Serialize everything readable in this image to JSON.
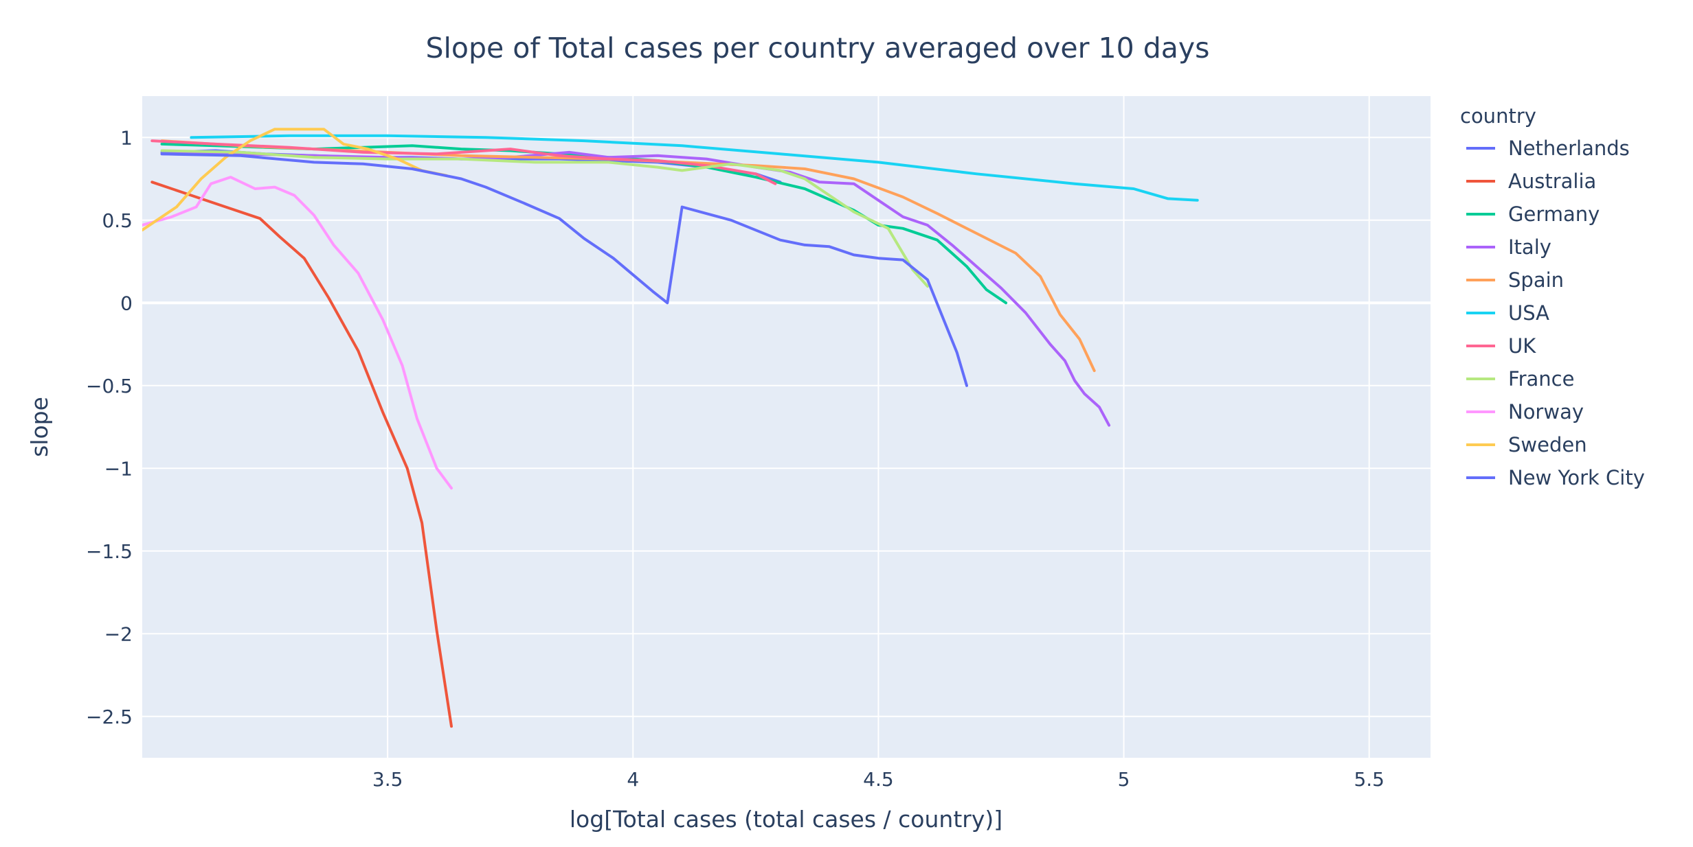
{
  "chart_data": {
    "type": "line",
    "title": "Slope of Total cases per country averaged over 10 days",
    "xlabel": "log[Total cases (total cases / country)]",
    "ylabel": "slope",
    "xlim": [
      3.0,
      5.625
    ],
    "ylim": [
      -2.75,
      1.25
    ],
    "x_ticks": [
      3.5,
      4,
      4.5,
      5,
      5.5
    ],
    "x_tick_labels": [
      "3.5",
      "4",
      "4.5",
      "5",
      "5.5"
    ],
    "y_ticks": [
      1,
      0.5,
      0,
      -0.5,
      -1,
      -1.5,
      -2,
      -2.5
    ],
    "y_tick_labels": [
      "1",
      "0.5",
      "0",
      "−0.5",
      "−1",
      "−1.5",
      "−2",
      "−2.5"
    ],
    "grid": true,
    "plot_background": "#e5ecf6",
    "legend": {
      "title": "country",
      "placement": "right"
    },
    "series": [
      {
        "name": "Netherlands",
        "color": "#636efa",
        "x": [
          3.04,
          3.15,
          3.25,
          3.35,
          3.45,
          3.55,
          3.65,
          3.75,
          3.85,
          3.95,
          4.05,
          4.15,
          4.25,
          4.3
        ],
        "y": [
          0.91,
          0.92,
          0.9,
          0.89,
          0.88,
          0.88,
          0.87,
          0.87,
          0.87,
          0.86,
          0.85,
          0.82,
          0.78,
          0.73
        ]
      },
      {
        "name": "Australia",
        "color": "#ef553b",
        "x": [
          3.02,
          3.1,
          3.17,
          3.24,
          3.28,
          3.33,
          3.38,
          3.44,
          3.49,
          3.54,
          3.57,
          3.6,
          3.63
        ],
        "y": [
          0.73,
          0.65,
          0.58,
          0.51,
          0.4,
          0.27,
          0.03,
          -0.29,
          -0.66,
          -1.0,
          -1.33,
          -1.98,
          -2.56
        ]
      },
      {
        "name": "Germany",
        "color": "#00cc96",
        "x": [
          3.04,
          3.15,
          3.25,
          3.35,
          3.45,
          3.55,
          3.65,
          3.75,
          3.85,
          3.95,
          4.05,
          4.15,
          4.25,
          4.35,
          4.45,
          4.5,
          4.55,
          4.62,
          4.68,
          4.72,
          4.76
        ],
        "y": [
          0.96,
          0.95,
          0.94,
          0.93,
          0.94,
          0.95,
          0.93,
          0.92,
          0.9,
          0.88,
          0.86,
          0.82,
          0.76,
          0.69,
          0.56,
          0.47,
          0.45,
          0.38,
          0.22,
          0.08,
          0.0
        ]
      },
      {
        "name": "Italy",
        "color": "#ab63fa",
        "x": [
          3.04,
          3.2,
          3.35,
          3.5,
          3.65,
          3.75,
          3.87,
          3.95,
          4.05,
          4.15,
          4.25,
          4.32,
          4.38,
          4.45,
          4.5,
          4.55,
          4.6,
          4.65,
          4.7,
          4.75,
          4.8,
          4.85,
          4.88,
          4.9,
          4.92,
          4.95,
          4.97
        ],
        "y": [
          0.9,
          0.9,
          0.89,
          0.88,
          0.87,
          0.88,
          0.91,
          0.88,
          0.89,
          0.87,
          0.82,
          0.79,
          0.73,
          0.72,
          0.62,
          0.52,
          0.47,
          0.35,
          0.22,
          0.09,
          -0.06,
          -0.25,
          -0.35,
          -0.47,
          -0.55,
          -0.63,
          -0.74
        ]
      },
      {
        "name": "Spain",
        "color": "#ffa15a",
        "x": [
          3.04,
          3.2,
          3.35,
          3.5,
          3.65,
          3.8,
          3.95,
          4.1,
          4.25,
          4.35,
          4.45,
          4.55,
          4.62,
          4.7,
          4.78,
          4.83,
          4.87,
          4.91,
          4.94
        ],
        "y": [
          0.98,
          0.95,
          0.93,
          0.91,
          0.89,
          0.88,
          0.87,
          0.85,
          0.83,
          0.81,
          0.75,
          0.64,
          0.54,
          0.42,
          0.3,
          0.16,
          -0.07,
          -0.22,
          -0.41
        ]
      },
      {
        "name": "USA",
        "color": "#19d3f3",
        "x": [
          3.1,
          3.3,
          3.5,
          3.7,
          3.9,
          4.1,
          4.3,
          4.5,
          4.7,
          4.9,
          5.02,
          5.09,
          5.15
        ],
        "y": [
          1.0,
          1.01,
          1.01,
          1.0,
          0.98,
          0.95,
          0.9,
          0.85,
          0.78,
          0.72,
          0.69,
          0.63,
          0.62
        ]
      },
      {
        "name": "UK",
        "color": "#ff6692",
        "x": [
          3.02,
          3.15,
          3.3,
          3.45,
          3.6,
          3.75,
          3.85,
          3.95,
          4.05,
          4.15,
          4.25,
          4.29
        ],
        "y": [
          0.98,
          0.96,
          0.94,
          0.91,
          0.9,
          0.93,
          0.89,
          0.87,
          0.86,
          0.83,
          0.78,
          0.72
        ]
      },
      {
        "name": "France",
        "color": "#b6e880",
        "x": [
          3.04,
          3.2,
          3.35,
          3.5,
          3.65,
          3.8,
          3.95,
          4.05,
          4.1,
          4.2,
          4.3,
          4.35,
          4.45,
          4.52,
          4.57,
          4.6
        ],
        "y": [
          0.92,
          0.91,
          0.88,
          0.87,
          0.87,
          0.85,
          0.85,
          0.82,
          0.8,
          0.84,
          0.8,
          0.75,
          0.55,
          0.45,
          0.2,
          0.1
        ]
      },
      {
        "name": "Norway",
        "color": "#ff97ff",
        "x": [
          3.0,
          3.06,
          3.11,
          3.14,
          3.18,
          3.23,
          3.27,
          3.31,
          3.35,
          3.39,
          3.44,
          3.49,
          3.53,
          3.56,
          3.6,
          3.63
        ],
        "y": [
          0.47,
          0.52,
          0.58,
          0.72,
          0.76,
          0.69,
          0.7,
          0.65,
          0.53,
          0.35,
          0.18,
          -0.1,
          -0.38,
          -0.7,
          -1.0,
          -1.12
        ]
      },
      {
        "name": "Sweden",
        "color": "#fecb52",
        "x": [
          3.0,
          3.07,
          3.12,
          3.17,
          3.22,
          3.27,
          3.32,
          3.37,
          3.41,
          3.46,
          3.52,
          3.57,
          3.62
        ],
        "y": [
          0.44,
          0.58,
          0.75,
          0.88,
          0.98,
          1.05,
          1.05,
          1.05,
          0.96,
          0.93,
          0.87,
          0.8,
          0.77
        ]
      },
      {
        "name": "New York City",
        "color": "#636efa",
        "x": [
          3.04,
          3.2,
          3.35,
          3.45,
          3.55,
          3.65,
          3.7,
          3.78,
          3.85,
          3.9,
          3.96,
          4.0,
          4.04,
          4.07,
          4.1,
          4.2,
          4.3,
          4.35,
          4.4,
          4.45,
          4.5,
          4.55,
          4.6,
          4.63,
          4.66,
          4.68
        ],
        "y": [
          0.9,
          0.89,
          0.85,
          0.84,
          0.81,
          0.75,
          0.7,
          0.6,
          0.51,
          0.39,
          0.27,
          0.17,
          0.07,
          0.0,
          0.58,
          0.5,
          0.38,
          0.35,
          0.34,
          0.29,
          0.27,
          0.26,
          0.14,
          -0.08,
          -0.3,
          -0.5
        ]
      }
    ]
  }
}
